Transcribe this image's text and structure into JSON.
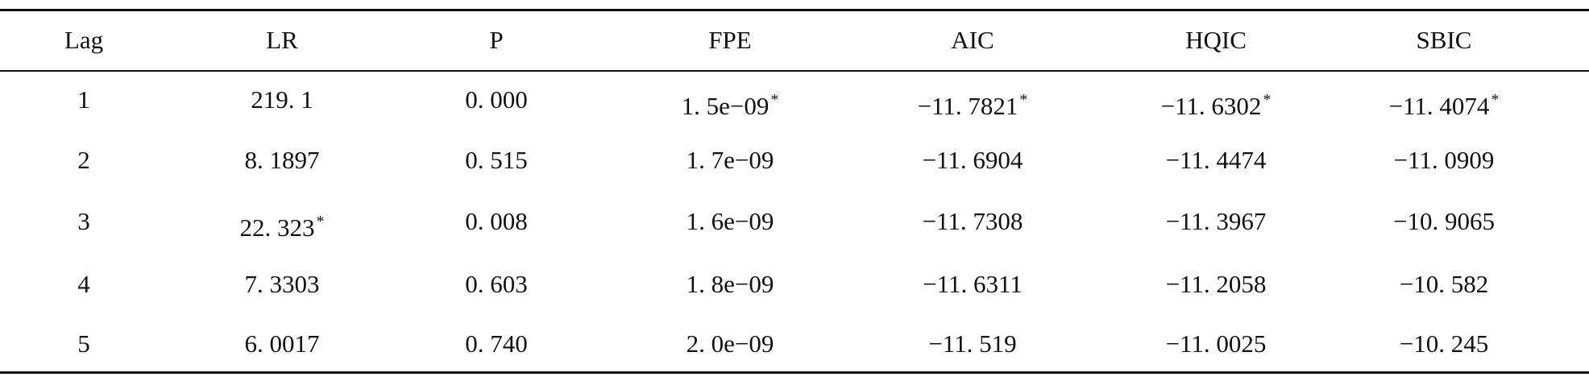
{
  "table": {
    "header": [
      "Lag",
      "LR",
      "P",
      "FPE",
      "AIC",
      "HQIC",
      "SBIC"
    ],
    "rows": [
      [
        "1",
        "219. 1",
        "0. 000",
        {
          "text": "1. 5e−09",
          "note": "*"
        },
        {
          "text": "−11. 7821",
          "note": "*"
        },
        {
          "text": "−11. 6302",
          "note": "*"
        },
        {
          "text": "−11. 4074",
          "note": "*"
        }
      ],
      [
        "2",
        "8. 1897",
        "0. 515",
        "1. 7e−09",
        "−11. 6904",
        "−11. 4474",
        "−11. 0909"
      ],
      [
        "3",
        {
          "text": "22. 323",
          "note": "*"
        },
        "0. 008",
        "1. 6e−09",
        "−11. 7308",
        "−11. 3967",
        "−10. 9065"
      ],
      [
        "4",
        "7. 3303",
        "0. 603",
        "1. 8e−09",
        "−11. 6311",
        "−11. 2058",
        "−10. 582"
      ],
      [
        "5",
        "6. 0017",
        "0. 740",
        "2. 0e−09",
        "−11. 519",
        "−11. 0025",
        "−10. 245"
      ]
    ]
  }
}
